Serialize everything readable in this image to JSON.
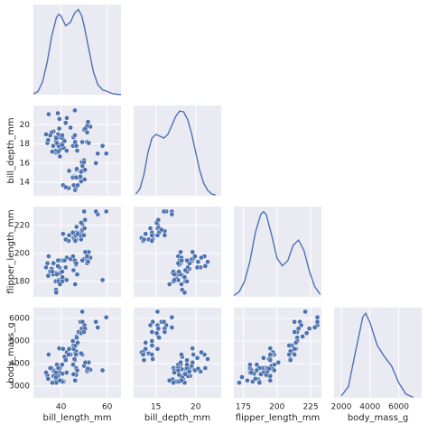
{
  "chart_data": {
    "type": "pairplot",
    "color": "#4c72b0",
    "grid": true,
    "variables": [
      {
        "name": "bill_length_mm",
        "xlim": [
          28,
          66
        ],
        "xticks": [
          40,
          60
        ],
        "values": [
          39.1,
          39.5,
          40.3,
          36.7,
          39.3,
          38.9,
          39.2,
          34.1,
          42,
          37.8,
          37.8,
          41.1,
          38.6,
          34.6,
          36.6,
          38.7,
          42.5,
          34.4,
          46,
          37.8,
          37.7,
          35.9,
          38.2,
          38.8,
          35.3,
          40.6,
          40.5,
          37.9,
          40.5,
          39.5,
          36.2,
          41.5,
          33.5,
          44.1,
          46.5,
          50,
          51.3,
          45.4,
          52.7,
          45.2,
          46.1,
          51.3,
          46,
          51.3,
          46.6,
          51.7,
          47,
          52,
          50.5,
          58,
          49.2,
          42.4,
          46.1,
          50,
          48.7,
          50,
          47.6,
          46.5,
          45.4,
          46.7,
          43.3,
          46.8,
          40.9,
          49,
          45.5,
          48.4,
          45.8,
          49.3,
          42,
          49.2,
          46.2,
          48.7,
          50.2,
          45.1,
          46.5,
          59.6,
          55.9,
          47.2,
          43.5,
          50.4,
          55.1,
          49.9
        ],
        "density": {
          "ylim": [
            0,
            0.055
          ],
          "x": [
            28,
            30,
            32,
            34,
            36,
            38,
            39,
            40,
            42,
            44,
            46,
            47.5,
            49,
            50,
            52,
            54,
            56,
            58,
            60,
            62,
            64,
            66
          ],
          "values": [
            0.0005,
            0.002,
            0.008,
            0.02,
            0.036,
            0.047,
            0.049,
            0.048,
            0.042,
            0.044,
            0.05,
            0.052,
            0.048,
            0.042,
            0.028,
            0.014,
            0.006,
            0.003,
            0.002,
            0.0008,
            0.0003,
            0.0001
          ]
        }
      },
      {
        "name": "bill_depth_mm",
        "xlim": [
          12.2,
          23.2
        ],
        "xticks": [
          15,
          20
        ],
        "ylim": [
          12.6,
          22
        ],
        "yticks": [
          14,
          16,
          18,
          20
        ],
        "values": [
          18.7,
          17.4,
          18,
          19.3,
          20.6,
          17.8,
          19.6,
          18.1,
          20.2,
          17.1,
          17.3,
          17.6,
          21.2,
          21.1,
          17.8,
          19,
          20.7,
          18.4,
          21.5,
          18.3,
          18.7,
          19.2,
          18.1,
          17.2,
          18.9,
          18.6,
          17.9,
          18.6,
          18.9,
          16.7,
          17.2,
          18.3,
          19,
          19.7,
          17.9,
          19.5,
          19.2,
          18.7,
          19.8,
          17.8,
          18.2,
          18.2,
          18.9,
          19.9,
          17.8,
          20.3,
          17.3,
          18.1,
          19.6,
          17.8,
          18.2,
          17.3,
          13.2,
          16.3,
          14.1,
          15.2,
          14.5,
          13.5,
          14.6,
          15.3,
          13.4,
          15.4,
          13.7,
          16.1,
          13.7,
          14.6,
          14.6,
          15.7,
          13.5,
          15.2,
          14.5,
          15.1,
          14.3,
          14.5,
          14.5,
          17,
          17,
          13.7,
          15.2,
          15.3,
          16,
          16.1
        ],
        "density": {
          "ylim": [
            0,
            0.25
          ],
          "x": [
            12.5,
            13,
            13.5,
            14,
            14.5,
            15,
            15.5,
            16,
            16.5,
            17,
            17.5,
            18,
            18.5,
            19,
            19.5,
            20,
            20.5,
            21,
            21.5,
            22,
            22.5
          ],
          "values": [
            0.005,
            0.02,
            0.06,
            0.12,
            0.16,
            0.17,
            0.165,
            0.16,
            0.17,
            0.195,
            0.22,
            0.235,
            0.232,
            0.21,
            0.17,
            0.12,
            0.07,
            0.035,
            0.015,
            0.005,
            0.002
          ]
        }
      },
      {
        "name": "flipper_length_mm",
        "xlim": [
          168,
          233
        ],
        "xticks": [
          175,
          200,
          225
        ],
        "ylim": [
          169,
          233.5
        ],
        "yticks": [
          180,
          200,
          220
        ],
        "values": [
          181,
          186,
          195,
          193,
          190,
          181,
          195,
          193,
          190,
          186,
          180,
          182,
          191,
          198,
          185,
          195,
          197,
          184,
          194,
          174,
          180,
          189,
          185,
          180,
          187,
          183,
          187,
          172,
          180,
          178,
          187,
          195,
          190,
          196,
          192,
          196,
          193,
          188,
          197,
          198,
          178,
          197,
          195,
          198,
          193,
          194,
          185,
          201,
          201,
          181,
          195,
          181,
          211,
          230,
          210,
          218,
          215,
          210,
          211,
          219,
          209,
          215,
          214,
          216,
          214,
          213,
          210,
          217,
          210,
          221,
          209,
          222,
          218,
          215,
          213,
          230,
          228,
          214,
          213,
          224,
          230,
          213
        ],
        "density": {
          "ylim": [
            0,
            0.035
          ],
          "x": [
            168,
            172,
            176,
            180,
            184,
            188,
            190,
            192,
            196,
            200,
            204,
            208,
            212,
            216,
            220,
            224,
            228,
            232
          ],
          "values": [
            0.0005,
            0.002,
            0.006,
            0.014,
            0.025,
            0.032,
            0.033,
            0.032,
            0.024,
            0.015,
            0.012,
            0.014,
            0.02,
            0.022,
            0.018,
            0.01,
            0.004,
            0.001
          ]
        }
      },
      {
        "name": "body_mass_g",
        "xlim": [
          1500,
          7600
        ],
        "xticks": [
          2000,
          4000,
          6000
        ],
        "ylim": [
          2480,
          6480
        ],
        "yticks": [
          3000,
          4000,
          5000,
          6000
        ],
        "values": [
          3750,
          3800,
          3250,
          3450,
          3650,
          3625,
          4675,
          3475,
          4250,
          3300,
          3700,
          3200,
          3800,
          4400,
          3700,
          3450,
          4500,
          3325,
          4200,
          3400,
          3600,
          3800,
          3950,
          3800,
          3800,
          3550,
          3200,
          3150,
          3950,
          3250,
          3150,
          4300,
          3600,
          4400,
          3500,
          3900,
          3650,
          3525,
          3725,
          3950,
          3250,
          3750,
          4150,
          3700,
          3800,
          3775,
          3700,
          4050,
          4050,
          3700,
          4400,
          3600,
          4500,
          5700,
          4450,
          5700,
          5400,
          4550,
          4800,
          5200,
          4400,
          5150,
          4650,
          5550,
          4650,
          5850,
          4200,
          5850,
          4150,
          6300,
          4800,
          5350,
          5700,
          5000,
          4400,
          6050,
          5600,
          4925,
          4650,
          5550,
          5850,
          5400
        ],
        "density": {
          "ylim": [
            0,
            0.00048
          ],
          "x": [
            2000,
            2500,
            3000,
            3500,
            3700,
            4000,
            4500,
            5000,
            5500,
            6000,
            6500,
            7000
          ],
          "values": [
            1e-05,
            6e-05,
            0.00025,
            0.00043,
            0.00045,
            0.0004,
            0.00028,
            0.00022,
            0.00017,
            8e-05,
            2e-05,
            3e-06
          ]
        }
      }
    ]
  }
}
